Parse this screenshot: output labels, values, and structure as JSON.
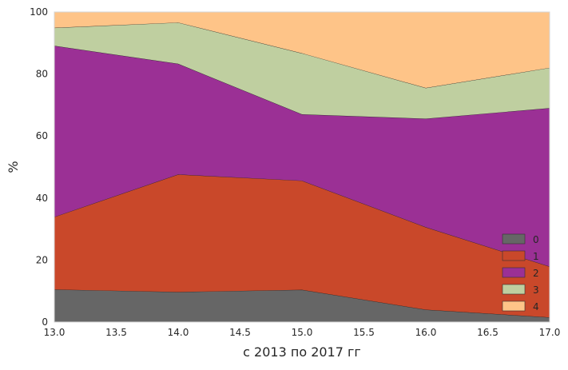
{
  "chart_data": {
    "type": "area",
    "stacked": true,
    "title": "",
    "xlabel": "с 2013 по 2017 гг",
    "ylabel": "%",
    "x": [
      13.0,
      14.0,
      15.0,
      16.0,
      17.0
    ],
    "xlim": [
      13.0,
      17.0
    ],
    "ylim": [
      0,
      100
    ],
    "xticks": [
      "13.0",
      "13.5",
      "14.0",
      "14.5",
      "15.0",
      "15.5",
      "16.0",
      "16.5",
      "17.0"
    ],
    "yticks": [
      "0",
      "20",
      "40",
      "60",
      "80",
      "100"
    ],
    "grid": false,
    "legend_position": "lower-right",
    "series": [
      {
        "name": "0",
        "color": "#666666",
        "values": [
          10.5,
          9.7,
          10.4,
          4.0,
          1.5
        ]
      },
      {
        "name": "1",
        "color": "#c9482a",
        "values": [
          23.4,
          37.9,
          35.2,
          26.6,
          16.4
        ]
      },
      {
        "name": "2",
        "color": "#9b3095",
        "values": [
          55.2,
          35.7,
          21.4,
          35.0,
          51.1
        ]
      },
      {
        "name": "3",
        "color": "#bfcfa0",
        "values": [
          5.8,
          13.3,
          19.7,
          9.9,
          13.0
        ]
      },
      {
        "name": "4",
        "color": "#fec488",
        "values": [
          5.1,
          3.4,
          13.3,
          24.5,
          18.0
        ]
      }
    ]
  }
}
